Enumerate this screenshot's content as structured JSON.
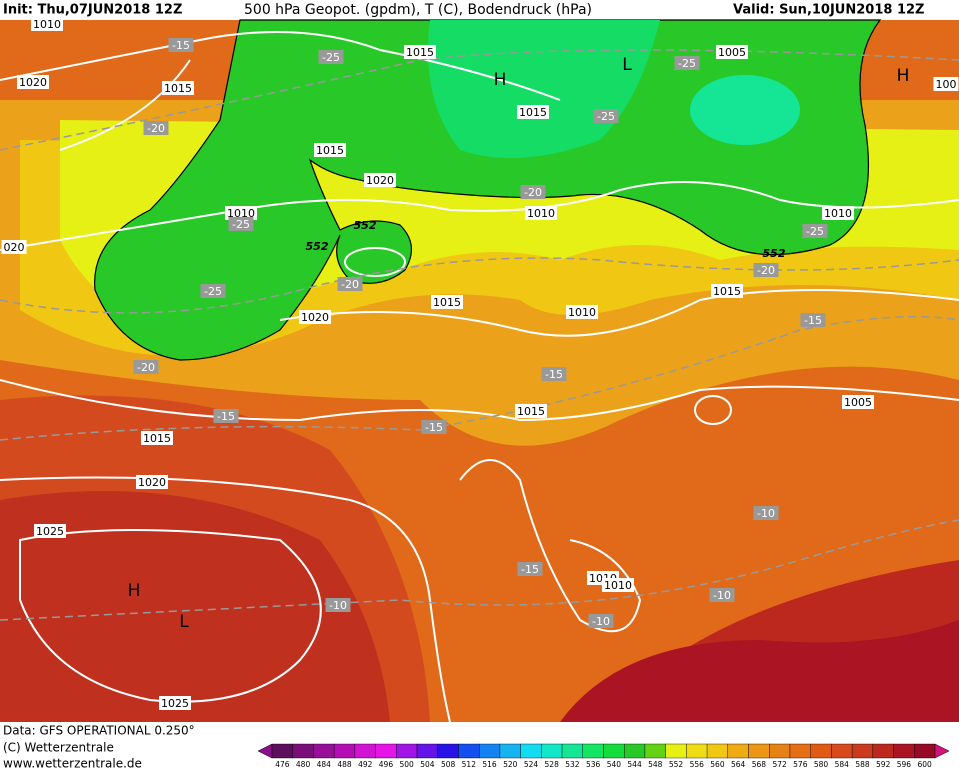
{
  "header": {
    "init": "Init: Thu,07JUN2018 12Z",
    "title": "500 hPa Geopot. (gpdm), T (C), Bodendruck (hPa)",
    "valid": "Valid: Sun,10JUN2018 12Z"
  },
  "map": {
    "isobar_labels": [
      "1010",
      "1020",
      "1015",
      "1015",
      "1005",
      "100",
      "1015",
      "1015",
      "1020",
      "1010",
      "020",
      "1010",
      "1010",
      "1015",
      "1015",
      "1010",
      "1020",
      "1015",
      "1005",
      "1015",
      "1020",
      "1025",
      "1010",
      "1010",
      "1025"
    ],
    "temperature_labels": [
      "-15",
      "-25",
      "-25",
      "-25",
      "-20",
      "-20",
      "-25",
      "-25",
      "-20",
      "-25",
      "-20",
      "-15",
      "-20",
      "-15",
      "-15",
      "-15",
      "-10",
      "-15",
      "-10",
      "-10",
      "-10"
    ],
    "pressure_centers": [
      "H",
      "L",
      "H",
      "H",
      "L"
    ],
    "height_labels": [
      "552",
      "552",
      "552"
    ]
  },
  "legend": {
    "values": [
      476,
      480,
      484,
      488,
      492,
      496,
      500,
      504,
      508,
      512,
      516,
      520,
      524,
      528,
      532,
      536,
      540,
      544,
      548,
      552,
      556,
      560,
      564,
      568,
      572,
      576,
      580,
      584,
      588,
      592,
      596,
      600
    ],
    "colors": [
      "#5c0f5c",
      "#7a0f7a",
      "#960f96",
      "#b40fb4",
      "#d214d2",
      "#e614e6",
      "#a014e6",
      "#6414e6",
      "#2814e6",
      "#1450f0",
      "#1482f0",
      "#14b4f0",
      "#14dcf0",
      "#14e6c8",
      "#14e696",
      "#14e664",
      "#14dc3c",
      "#28c828",
      "#64d214",
      "#e6f014",
      "#f0dc14",
      "#f0c814",
      "#f0aa14",
      "#eb9614",
      "#e68214",
      "#e66e14",
      "#e05a14",
      "#d84a1e",
      "#cc3a1e",
      "#bc281e",
      "#aa1423",
      "#960a28"
    ]
  },
  "footer": {
    "data": "Data: GFS OPERATIONAL 0.250°",
    "copyright": "(C) Wetterzentrale",
    "url": "www.wetterzentrale.de"
  }
}
